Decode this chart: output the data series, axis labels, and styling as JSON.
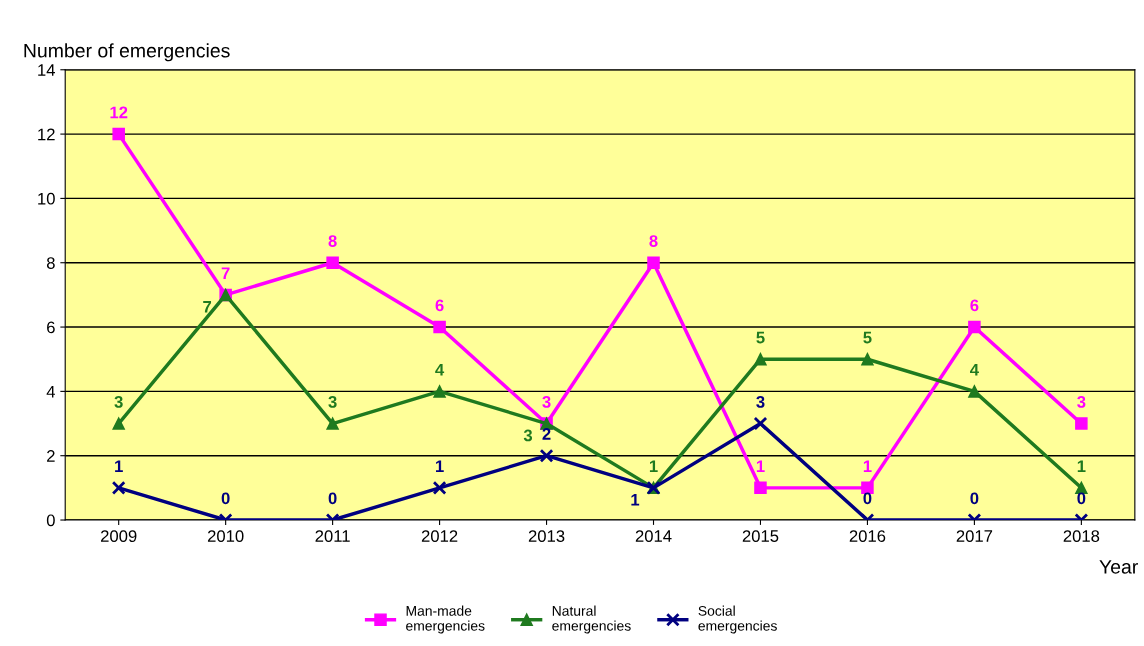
{
  "chart_data": {
    "type": "line",
    "ylabel": "Number of emergencies",
    "xlabel": "Year",
    "categories": [
      "2009",
      "2010",
      "2011",
      "2012",
      "2013",
      "2014",
      "2015",
      "2016",
      "2017",
      "2018"
    ],
    "series": [
      {
        "name": "Man-made\nemergencies",
        "color": "#ff00ff",
        "marker": "square",
        "values": [
          12,
          7,
          8,
          6,
          3,
          8,
          1,
          1,
          6,
          3
        ]
      },
      {
        "name": "Natural\nemergencies",
        "color": "#1f7a1f",
        "marker": "triangle",
        "values": [
          3,
          7,
          3,
          4,
          3,
          1,
          5,
          5,
          4,
          1
        ]
      },
      {
        "name": "Social\nemergencies",
        "color": "#000080",
        "marker": "cross",
        "values": [
          1,
          0,
          0,
          1,
          2,
          1,
          3,
          0,
          0,
          0
        ]
      }
    ],
    "ylim": [
      0,
      14
    ],
    "yticks": [
      0,
      2,
      4,
      6,
      8,
      10,
      12,
      14
    ],
    "grid": "y",
    "legend": "bottom",
    "data_labels": true,
    "line_style": "solid"
  }
}
